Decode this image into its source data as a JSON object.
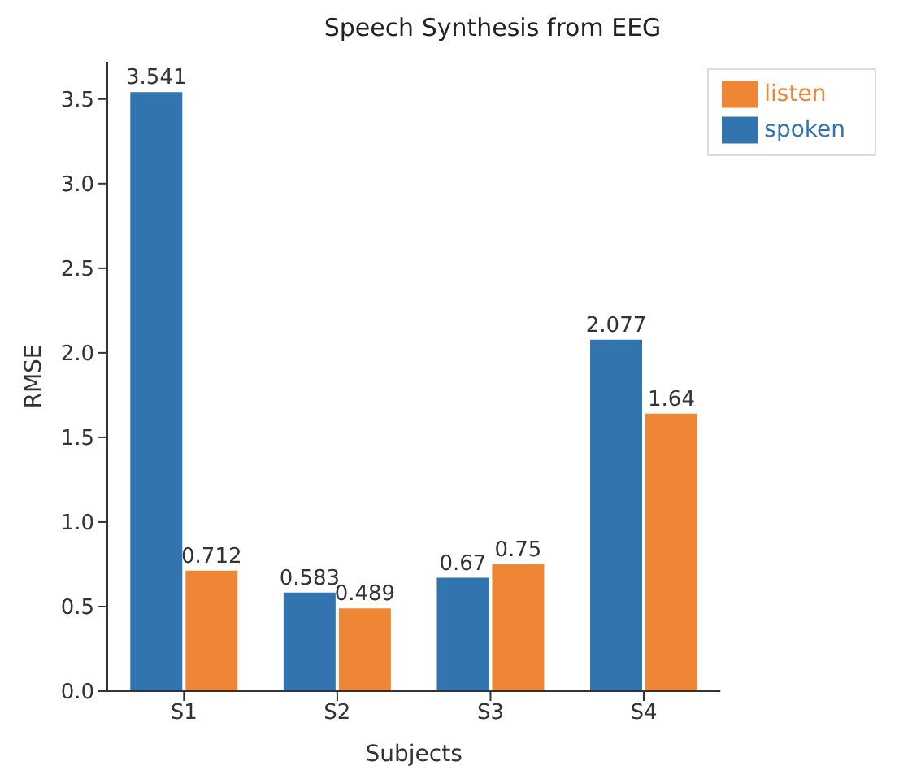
{
  "chart_data": {
    "type": "bar",
    "title": "Speech Synthesis from EEG",
    "xlabel": "Subjects",
    "ylabel": "RMSE",
    "categories": [
      "S1",
      "S2",
      "S3",
      "S4"
    ],
    "series": [
      {
        "name": "spoken",
        "color": "#3274b0",
        "values": [
          3.541,
          0.583,
          0.67,
          2.077
        ]
      },
      {
        "name": "listen",
        "color": "#ee8636",
        "values": [
          0.712,
          0.489,
          0.75,
          1.64
        ]
      }
    ],
    "ylim": [
      0,
      3.72
    ],
    "yticks": [
      {
        "value": 0,
        "label": "0.0"
      },
      {
        "value": 0.5,
        "label": "0.5"
      },
      {
        "value": 1,
        "label": "1.0"
      },
      {
        "value": 1.5,
        "label": "1.5"
      },
      {
        "value": 2,
        "label": "2.0"
      },
      {
        "value": 2.5,
        "label": "2.5"
      },
      {
        "value": 3,
        "label": "3.0"
      },
      {
        "value": 3.5,
        "label": "3.5"
      }
    ],
    "data_labels": true,
    "legend": "top right",
    "grid": false
  }
}
